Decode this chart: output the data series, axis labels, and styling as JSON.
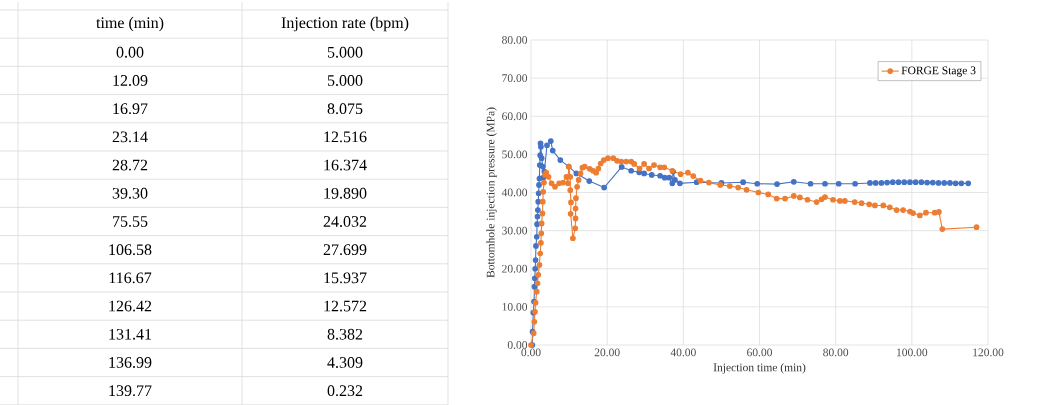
{
  "chart_data": [
    {
      "type": "other",
      "xlabel": "time (min)",
      "ylabel": "Injection rate (bpm)",
      "categories": [
        "0.00",
        "12.09",
        "16.97",
        "23.14",
        "28.72",
        "39.30",
        "75.55",
        "106.58",
        "116.67",
        "126.42",
        "131.41",
        "136.99",
        "139.77"
      ],
      "value_labels": [
        "5.000",
        "5.000",
        "8.075",
        "12.516",
        "16.374",
        "19.890",
        "24.032",
        "27.699",
        "15.937",
        "12.572",
        "8.382",
        "4.309",
        "0.232"
      ]
    },
    {
      "type": "line",
      "xlabel": "Injection time (min)",
      "ylabel": "Bottomhole injection pressure (MPa)",
      "xlim": [
        0,
        120
      ],
      "ylim": [
        0,
        80
      ],
      "xticks": [
        {
          "value": 0,
          "label": "0.00"
        },
        {
          "value": 20,
          "label": "20.00"
        },
        {
          "value": 40,
          "label": "40.00"
        },
        {
          "value": 60,
          "label": "60.00"
        },
        {
          "value": 80,
          "label": "80.00"
        },
        {
          "value": 100,
          "label": "100.00"
        },
        {
          "value": 120,
          "label": "120.00"
        }
      ],
      "yticks": [
        {
          "value": 0,
          "label": "0.00"
        },
        {
          "value": 10,
          "label": "10.00"
        },
        {
          "value": 20,
          "label": "20.00"
        },
        {
          "value": 30,
          "label": "30.00"
        },
        {
          "value": 40,
          "label": "40.00"
        },
        {
          "value": 50,
          "label": "50.00"
        },
        {
          "value": 60,
          "label": "60.00"
        },
        {
          "value": 70,
          "label": "70.00"
        },
        {
          "value": 80,
          "label": "80.00"
        }
      ],
      "grid": true,
      "legend": "top right",
      "marker": "circle",
      "line_style": "solid",
      "series": [
        {
          "color": "#4472c4",
          "x": [
            0.35,
            0.4,
            0.6,
            0.8,
            0.9,
            1.0,
            1.1,
            1.2,
            1.3,
            1.5,
            1.6,
            1.7,
            1.8,
            1.9,
            2.0,
            2.1,
            2.2,
            2.3,
            2.4,
            2.5,
            2.6,
            2.8,
            3.1,
            3.3,
            3.5,
            4.2,
            5.2,
            5.7,
            7.7,
            9.9,
            11.9,
            15.3,
            19.2,
            23.8,
            26.3,
            28.4,
            29.7,
            31.7,
            33.9,
            35.1,
            36.3,
            37.1,
            37.3,
            37.8,
            39.1,
            43.5,
            50.0,
            55.7,
            59.4,
            64.6,
            69.0,
            73.4,
            77.2,
            80.8,
            85.1,
            89.0,
            90.5,
            92.0,
            93.5,
            95.0,
            96.5,
            98.0,
            99.5,
            101.0,
            102.5,
            104.0,
            105.5,
            107.0,
            108.5,
            110.0,
            111.5,
            113.0,
            114.8
          ],
          "values": [
            0,
            3.5,
            8.5,
            11.4,
            15.3,
            17.5,
            20,
            22.3,
            26,
            28.4,
            31.7,
            33.7,
            35.4,
            37.6,
            39.8,
            42,
            43.7,
            47.2,
            49.8,
            52.9,
            52,
            49,
            46.8,
            44,
            45.5,
            52.4,
            53.5,
            51,
            48.5,
            46.8,
            45,
            43,
            41.3,
            46.7,
            45.7,
            45.3,
            45,
            44.6,
            44.4,
            43.9,
            43.9,
            42.4,
            45.5,
            43.3,
            42.4,
            42.7,
            42.5,
            42.7,
            42.3,
            42.2,
            42.8,
            42.3,
            42.3,
            42.3,
            42.3,
            42.5,
            42.5,
            42.5,
            42.6,
            42.7,
            42.7,
            42.7,
            42.7,
            42.7,
            42.7,
            42.6,
            42.6,
            42.5,
            42.5,
            42.5,
            42.4,
            42.4,
            42.4
          ]
        },
        {
          "name": "FORGE Stage 3",
          "color": "#ed7d31",
          "x": [
            0,
            0.7,
            0.87,
            1.04,
            1.2,
            1.5,
            1.7,
            1.9,
            2.2,
            2.4,
            2.6,
            2.7,
            2.8,
            3.0,
            3.1,
            3.2,
            3.4,
            3.7,
            4.0,
            4.6,
            5.4,
            6.3,
            7.4,
            8.4,
            9.3,
            9.7,
            9.9,
            10.3,
            10.3,
            10.5,
            10.4,
            11.0,
            11.6,
            11.7,
            11.7,
            11.8,
            12.1,
            12.5,
            13.0,
            13.5,
            14.1,
            15.4,
            16.3,
            17.1,
            17.7,
            18.3,
            19.1,
            20.2,
            21.6,
            22.6,
            23.7,
            25.0,
            26.3,
            27.1,
            28.5,
            29.7,
            31.0,
            32.3,
            33.9,
            35.0,
            37.1,
            39.3,
            41.2,
            42.6,
            44.5,
            46.7,
            49.7,
            52.2,
            54.4,
            56.6,
            59.7,
            62.3,
            64.5,
            66.7,
            69.0,
            70.6,
            72.6,
            75.0,
            76.3,
            77.2,
            79.3,
            81.1,
            82.4,
            85.0,
            86.8,
            88.8,
            90.3,
            92.5,
            94.2,
            96.0,
            97.7,
            99.5,
            100.3,
            102.1,
            103.7,
            106.0,
            107.1,
            108.0,
            117.0
          ],
          "values": [
            0,
            3.1,
            6.1,
            8.7,
            11.1,
            14,
            16.2,
            18.4,
            21,
            24,
            26.8,
            29.3,
            31.9,
            34.5,
            37.6,
            40.2,
            42.6,
            44.6,
            45.2,
            44.1,
            42.4,
            41.5,
            42.4,
            42.6,
            44.1,
            42.4,
            46.8,
            44.1,
            40.6,
            37.4,
            34.4,
            28,
            30.6,
            33.2,
            35.8,
            38.5,
            41.5,
            43.3,
            45,
            46.5,
            46.8,
            46.2,
            45.7,
            45.2,
            46.3,
            47.6,
            48.5,
            49,
            49,
            48.3,
            48.1,
            48.1,
            48.1,
            47.5,
            46.3,
            47.5,
            46.3,
            47.2,
            46.6,
            46.6,
            45.7,
            44.8,
            45.2,
            44.3,
            43.1,
            42.6,
            42.0,
            41.7,
            41.3,
            40.7,
            40.0,
            39.5,
            38.4,
            38.4,
            39.1,
            38.7,
            38.1,
            37.5,
            38.2,
            38.8,
            38.1,
            37.8,
            37.8,
            37.5,
            37.2,
            36.9,
            36.6,
            36.6,
            36.1,
            35.4,
            35.4,
            35.0,
            34.6,
            34.0,
            34.7,
            34.7,
            34.9,
            30.4,
            30.9
          ]
        }
      ]
    }
  ]
}
